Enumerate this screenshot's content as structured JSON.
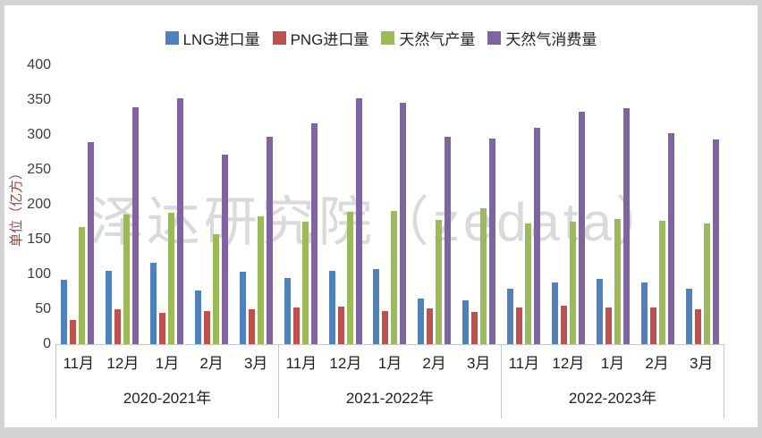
{
  "watermark": "泽达研究院（zedata）",
  "chart_data": {
    "type": "bar",
    "title": "",
    "xlabel": "",
    "ylabel": "单位（亿方）",
    "ylabel_color": "#a33f38",
    "ylim": [
      0,
      400
    ],
    "yticks": [
      400,
      350,
      300,
      250,
      200,
      150,
      100,
      50,
      0
    ],
    "grid": false,
    "legend_position": "top-center",
    "group_labels": [
      "2020-2021年",
      "2021-2022年",
      "2022-2023年"
    ],
    "categories": [
      "11月",
      "12月",
      "1月",
      "2月",
      "3月"
    ],
    "series": [
      {
        "name": "LNG进口量",
        "color": "#4f81bd",
        "values": [
          [
            92,
            105,
            117,
            77,
            104
          ],
          [
            95,
            105,
            108,
            65,
            63
          ],
          [
            79,
            88,
            94,
            88,
            79
          ]
        ]
      },
      {
        "name": "PNG进口量",
        "color": "#c0504d",
        "values": [
          [
            35,
            50,
            45,
            48,
            50
          ],
          [
            52,
            54,
            47,
            51,
            46
          ],
          [
            52,
            55,
            53,
            52,
            50
          ]
        ]
      },
      {
        "name": "天然气产量",
        "color": "#9bbb59",
        "values": [
          [
            168,
            186,
            189,
            158,
            183
          ],
          [
            175,
            190,
            191,
            178,
            195
          ],
          [
            173,
            176,
            180,
            177,
            173
          ]
        ]
      },
      {
        "name": "天然气消费量",
        "color": "#8064a2",
        "values": [
          [
            290,
            340,
            353,
            272,
            298
          ],
          [
            317,
            353,
            346,
            298,
            295
          ],
          [
            310,
            333,
            339,
            303,
            293
          ]
        ]
      }
    ]
  }
}
